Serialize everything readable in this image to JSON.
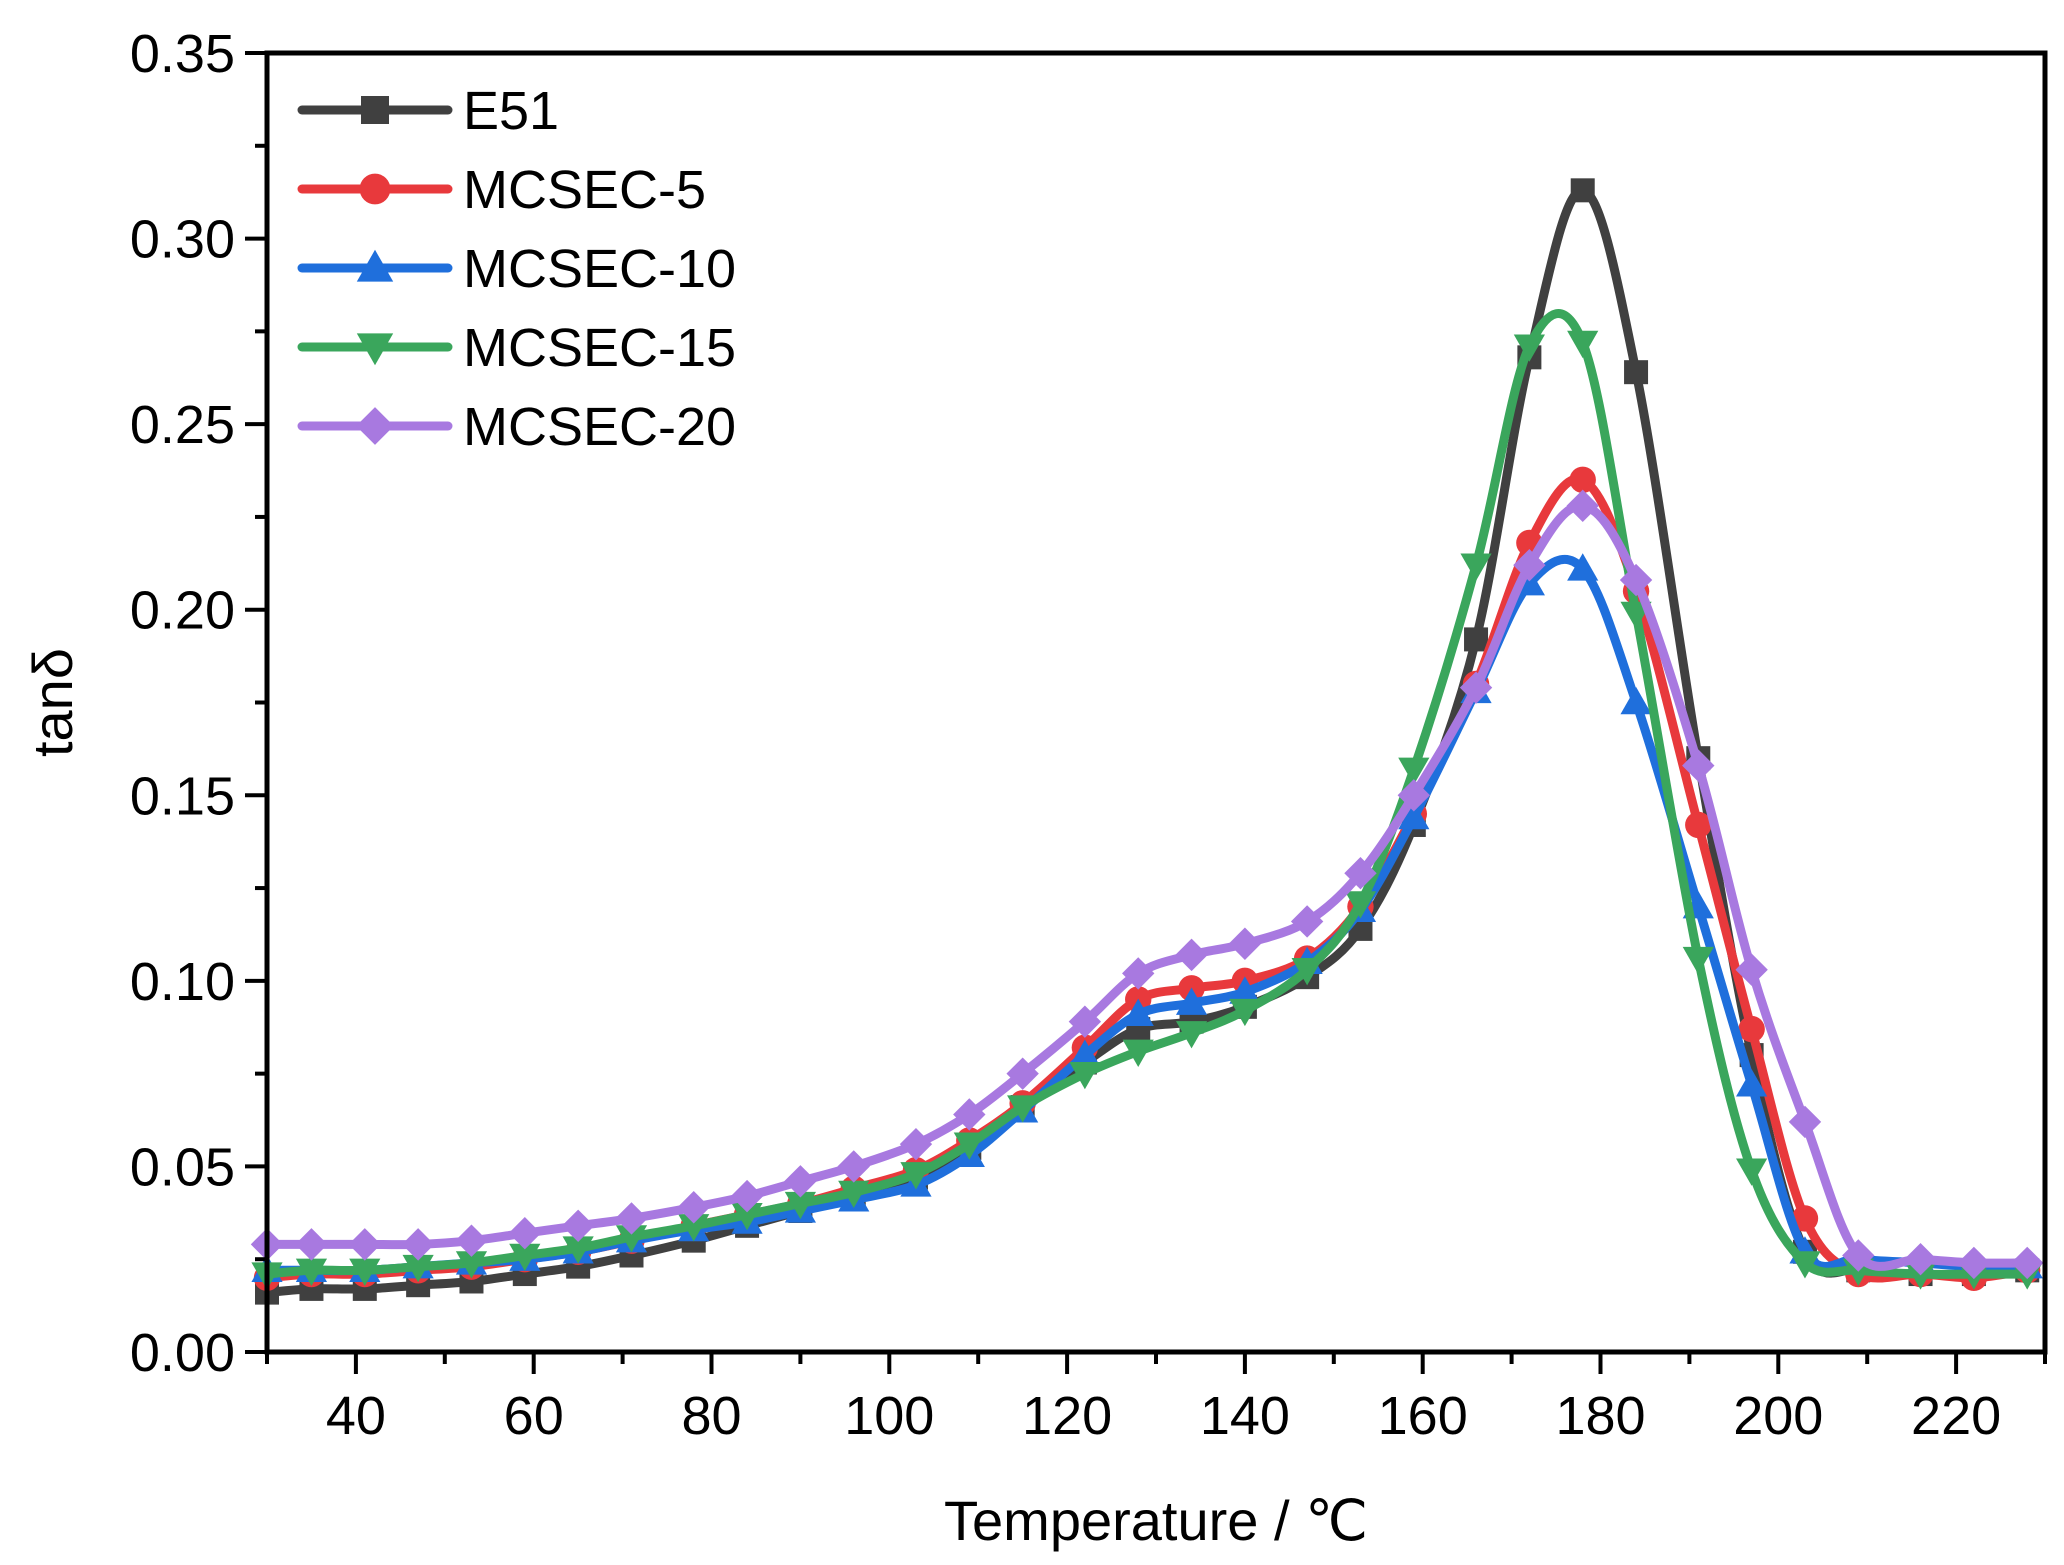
{
  "chart_data": {
    "type": "line",
    "xlabel": "Temperature / ℃",
    "ylabel": "tanδ",
    "xlim": [
      30,
      230
    ],
    "ylim": [
      0.0,
      0.35
    ],
    "xticks": [
      40,
      60,
      80,
      100,
      120,
      140,
      160,
      180,
      200,
      220
    ],
    "yticks": [
      "0.00",
      "0.05",
      "0.10",
      "0.15",
      "0.20",
      "0.25",
      "0.30",
      "0.35"
    ],
    "legend_position": "top-left",
    "grid": false,
    "series": [
      {
        "name": "E51",
        "color": "#404040",
        "marker": "square",
        "x": [
          30,
          35,
          41,
          47,
          53,
          59,
          65,
          71,
          78,
          84,
          90,
          96,
          103,
          109,
          115,
          122,
          128,
          134,
          140,
          147,
          153,
          159,
          166,
          172,
          178,
          184,
          191,
          197,
          203,
          209,
          216,
          222,
          228
        ],
        "y": [
          0.016,
          0.017,
          0.017,
          0.018,
          0.019,
          0.021,
          0.023,
          0.026,
          0.03,
          0.034,
          0.038,
          0.042,
          0.047,
          0.055,
          0.066,
          0.078,
          0.087,
          0.089,
          0.093,
          0.101,
          0.114,
          0.142,
          0.192,
          0.268,
          0.313,
          0.264,
          0.16,
          0.08,
          0.027,
          0.022,
          0.021,
          0.021,
          0.022
        ]
      },
      {
        "name": "MCSEC-5",
        "color": "#e8393c",
        "marker": "circle",
        "x": [
          30,
          35,
          41,
          47,
          53,
          59,
          65,
          71,
          78,
          84,
          90,
          96,
          103,
          109,
          115,
          122,
          128,
          134,
          140,
          147,
          153,
          159,
          166,
          172,
          178,
          184,
          191,
          197,
          203,
          209,
          216,
          222,
          228
        ],
        "y": [
          0.02,
          0.021,
          0.021,
          0.022,
          0.023,
          0.025,
          0.027,
          0.03,
          0.034,
          0.037,
          0.04,
          0.044,
          0.049,
          0.057,
          0.067,
          0.082,
          0.095,
          0.098,
          0.1,
          0.106,
          0.12,
          0.145,
          0.18,
          0.218,
          0.235,
          0.205,
          0.142,
          0.087,
          0.036,
          0.021,
          0.021,
          0.02,
          0.022
        ]
      },
      {
        "name": "MCSEC-10",
        "color": "#1f6fdc",
        "marker": "triangle-up",
        "x": [
          30,
          35,
          41,
          47,
          53,
          59,
          65,
          71,
          78,
          84,
          90,
          96,
          103,
          109,
          115,
          122,
          128,
          134,
          140,
          147,
          153,
          159,
          166,
          172,
          178,
          184,
          191,
          197,
          203,
          209,
          216,
          222,
          228
        ],
        "y": [
          0.022,
          0.022,
          0.022,
          0.023,
          0.024,
          0.025,
          0.027,
          0.03,
          0.033,
          0.035,
          0.038,
          0.041,
          0.045,
          0.053,
          0.065,
          0.08,
          0.091,
          0.094,
          0.097,
          0.105,
          0.119,
          0.144,
          0.178,
          0.207,
          0.211,
          0.175,
          0.12,
          0.072,
          0.027,
          0.025,
          0.024,
          0.023,
          0.023
        ]
      },
      {
        "name": "MCSEC-15",
        "color": "#3aa65c",
        "marker": "triangle-down",
        "x": [
          30,
          35,
          41,
          47,
          53,
          59,
          65,
          71,
          78,
          84,
          90,
          96,
          103,
          109,
          115,
          122,
          128,
          134,
          140,
          147,
          153,
          159,
          166,
          172,
          178,
          184,
          191,
          197,
          203,
          209,
          216,
          222,
          228
        ],
        "y": [
          0.021,
          0.022,
          0.022,
          0.023,
          0.024,
          0.026,
          0.028,
          0.031,
          0.034,
          0.037,
          0.04,
          0.043,
          0.048,
          0.056,
          0.066,
          0.075,
          0.081,
          0.086,
          0.092,
          0.103,
          0.121,
          0.157,
          0.212,
          0.271,
          0.272,
          0.199,
          0.106,
          0.049,
          0.024,
          0.022,
          0.021,
          0.021,
          0.021
        ]
      },
      {
        "name": "MCSEC-20",
        "color": "#a879e0",
        "marker": "diamond",
        "x": [
          30,
          35,
          41,
          47,
          53,
          59,
          65,
          71,
          78,
          84,
          90,
          96,
          103,
          109,
          115,
          122,
          128,
          134,
          140,
          147,
          153,
          159,
          166,
          172,
          178,
          184,
          191,
          197,
          203,
          209,
          216,
          222,
          228
        ],
        "y": [
          0.029,
          0.029,
          0.029,
          0.029,
          0.03,
          0.032,
          0.034,
          0.036,
          0.039,
          0.042,
          0.046,
          0.05,
          0.056,
          0.064,
          0.075,
          0.089,
          0.102,
          0.107,
          0.11,
          0.116,
          0.129,
          0.15,
          0.179,
          0.212,
          0.228,
          0.208,
          0.158,
          0.103,
          0.062,
          0.026,
          0.025,
          0.024,
          0.024
        ]
      }
    ]
  }
}
